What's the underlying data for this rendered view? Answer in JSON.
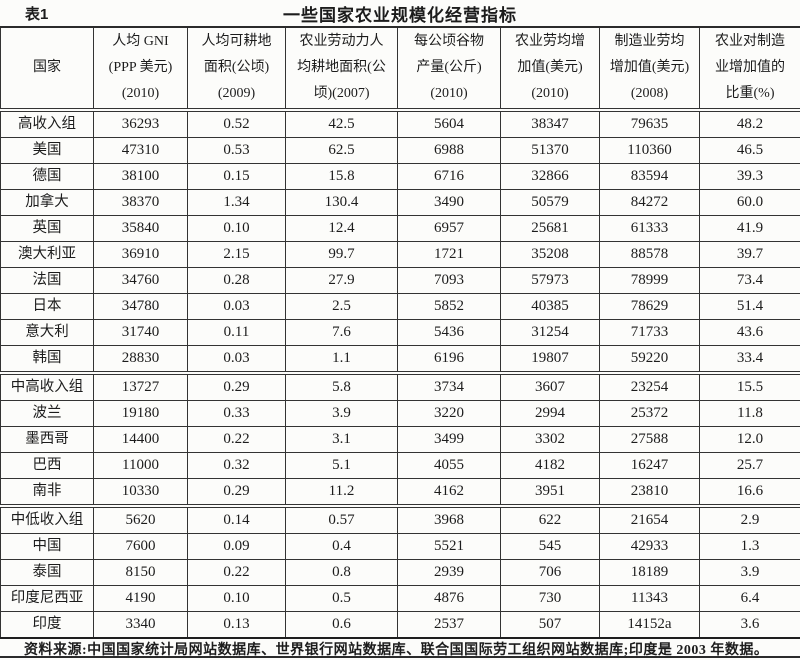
{
  "page": {
    "table_label": "表1",
    "title": "一些国家农业规模化经营指标",
    "footnote": "资料来源:中国国家统计局网站数据库、世界银行网站数据库、联合国国际劳工组织网站数据库;印度是 2003 年数据。"
  },
  "colors": {
    "paper": "#fcfcfa",
    "ink": "#1c1c1c",
    "line": "#333333"
  },
  "table": {
    "columns": [
      "国家",
      "人均 GNI\n(PPP 美元)\n(2010)",
      "人均可耕地\n面积(公顷)\n(2009)",
      "农业劳动力人\n均耕地面积(公\n顷)(2007)",
      "每公顷谷物\n产量(公斤)\n(2010)",
      "农业劳均增\n加值(美元)\n(2010)",
      "制造业劳均\n增加值(美元)\n(2008)",
      "农业对制造\n业增加值的\n比重(%)"
    ],
    "rows": [
      {
        "name": "高收入组",
        "group": true,
        "section_start": false,
        "values": [
          "36293",
          "0.52",
          "42.5",
          "5604",
          "38347",
          "79635",
          "48.2"
        ]
      },
      {
        "name": "美国",
        "group": false,
        "section_start": false,
        "values": [
          "47310",
          "0.53",
          "62.5",
          "6988",
          "51370",
          "110360",
          "46.5"
        ]
      },
      {
        "name": "德国",
        "group": false,
        "section_start": false,
        "values": [
          "38100",
          "0.15",
          "15.8",
          "6716",
          "32866",
          "83594",
          "39.3"
        ]
      },
      {
        "name": "加拿大",
        "group": false,
        "section_start": false,
        "values": [
          "38370",
          "1.34",
          "130.4",
          "3490",
          "50579",
          "84272",
          "60.0"
        ]
      },
      {
        "name": "英国",
        "group": false,
        "section_start": false,
        "values": [
          "35840",
          "0.10",
          "12.4",
          "6957",
          "25681",
          "61333",
          "41.9"
        ]
      },
      {
        "name": "澳大利亚",
        "group": false,
        "section_start": false,
        "values": [
          "36910",
          "2.15",
          "99.7",
          "1721",
          "35208",
          "88578",
          "39.7"
        ]
      },
      {
        "name": "法国",
        "group": false,
        "section_start": false,
        "values": [
          "34760",
          "0.28",
          "27.9",
          "7093",
          "57973",
          "78999",
          "73.4"
        ]
      },
      {
        "name": "日本",
        "group": false,
        "section_start": false,
        "values": [
          "34780",
          "0.03",
          "2.5",
          "5852",
          "40385",
          "78629",
          "51.4"
        ]
      },
      {
        "name": "意大利",
        "group": false,
        "section_start": false,
        "values": [
          "31740",
          "0.11",
          "7.6",
          "5436",
          "31254",
          "71733",
          "43.6"
        ]
      },
      {
        "name": "韩国",
        "group": false,
        "section_start": false,
        "values": [
          "28830",
          "0.03",
          "1.1",
          "6196",
          "19807",
          "59220",
          "33.4"
        ]
      },
      {
        "name": "中高收入组",
        "group": true,
        "section_start": true,
        "values": [
          "13727",
          "0.29",
          "5.8",
          "3734",
          "3607",
          "23254",
          "15.5"
        ]
      },
      {
        "name": "波兰",
        "group": false,
        "section_start": false,
        "values": [
          "19180",
          "0.33",
          "3.9",
          "3220",
          "2994",
          "25372",
          "11.8"
        ]
      },
      {
        "name": "墨西哥",
        "group": false,
        "section_start": false,
        "values": [
          "14400",
          "0.22",
          "3.1",
          "3499",
          "3302",
          "27588",
          "12.0"
        ]
      },
      {
        "name": "巴西",
        "group": false,
        "section_start": false,
        "values": [
          "11000",
          "0.32",
          "5.1",
          "4055",
          "4182",
          "16247",
          "25.7"
        ]
      },
      {
        "name": "南非",
        "group": false,
        "section_start": false,
        "values": [
          "10330",
          "0.29",
          "11.2",
          "4162",
          "3951",
          "23810",
          "16.6"
        ]
      },
      {
        "name": "中低收入组",
        "group": true,
        "section_start": true,
        "values": [
          "5620",
          "0.14",
          "0.57",
          "3968",
          "622",
          "21654",
          "2.9"
        ]
      },
      {
        "name": "中国",
        "group": false,
        "section_start": false,
        "values": [
          "7600",
          "0.09",
          "0.4",
          "5521",
          "545",
          "42933",
          "1.3"
        ]
      },
      {
        "name": "泰国",
        "group": false,
        "section_start": false,
        "values": [
          "8150",
          "0.22",
          "0.8",
          "2939",
          "706",
          "18189",
          "3.9"
        ]
      },
      {
        "name": "印度尼西亚",
        "group": false,
        "section_start": false,
        "values": [
          "4190",
          "0.10",
          "0.5",
          "4876",
          "730",
          "11343",
          "6.4"
        ]
      },
      {
        "name": "印度",
        "group": false,
        "section_start": false,
        "values": [
          "3340",
          "0.13",
          "0.6",
          "2537",
          "507",
          "14152a",
          "3.6"
        ]
      }
    ]
  }
}
